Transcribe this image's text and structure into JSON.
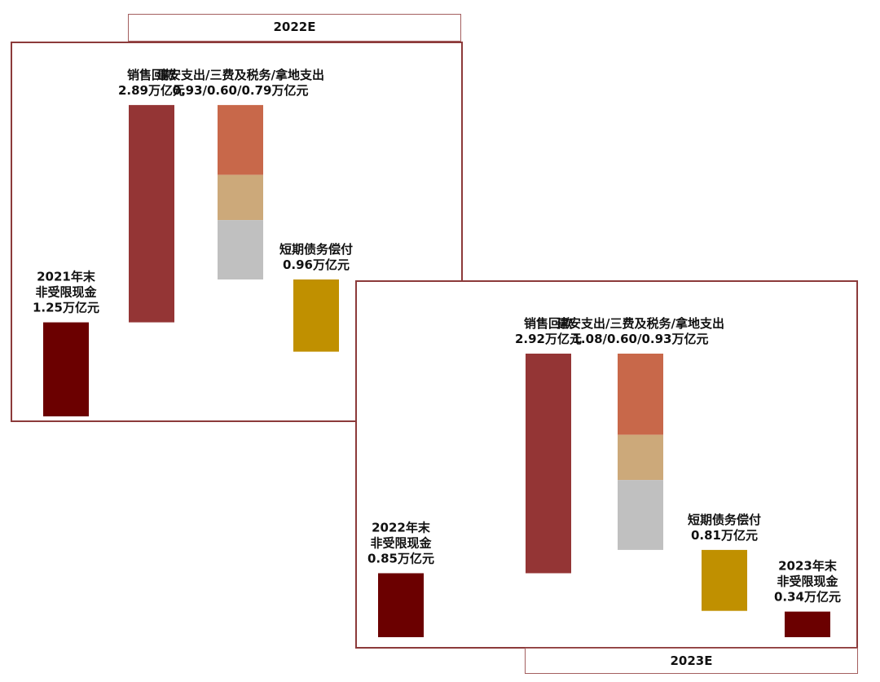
{
  "colors": {
    "panel_border": "#8c3a3a",
    "cash": "#6b0000",
    "sales": "#943535",
    "construction": "#c8684a",
    "fees_taxes": "#cca97a",
    "land": "#c0c0c0",
    "debt": "#c09000"
  },
  "unit": "万亿元",
  "chart_data": [
    {
      "type": "bar",
      "subtype": "waterfall",
      "period_label": "2022E",
      "steps": [
        {
          "key": "start_cash",
          "label_lines": [
            "2021年末",
            "非受限现金",
            "1.25万亿元"
          ],
          "value": 1.25,
          "direction": "start",
          "color_key": "cash"
        },
        {
          "key": "sales",
          "label_lines": [
            "销售回款",
            "2.89万亿元"
          ],
          "value": 2.89,
          "direction": "increase",
          "color_key": "sales"
        },
        {
          "key": "spend",
          "label_lines": [
            "建安支出/三费及税务/拿地支出",
            "0.93/0.60/0.79万亿元"
          ],
          "direction": "decrease",
          "segments": [
            {
              "name": "建安支出",
              "value": 0.93,
              "color_key": "construction"
            },
            {
              "name": "三费及税务",
              "value": 0.6,
              "color_key": "fees_taxes"
            },
            {
              "name": "拿地支出",
              "value": 0.79,
              "color_key": "land"
            }
          ]
        },
        {
          "key": "debt",
          "label_lines": [
            "短期债务偿付",
            "0.96万亿元"
          ],
          "value": 0.96,
          "direction": "decrease",
          "color_key": "debt"
        }
      ]
    },
    {
      "type": "bar",
      "subtype": "waterfall",
      "period_label": "2023E",
      "steps": [
        {
          "key": "start_cash",
          "label_lines": [
            "2022年末",
            "非受限现金",
            "0.85万亿元"
          ],
          "value": 0.85,
          "direction": "start",
          "color_key": "cash"
        },
        {
          "key": "sales",
          "label_lines": [
            "销售回款",
            "2.92万亿元"
          ],
          "value": 2.92,
          "direction": "increase",
          "color_key": "sales"
        },
        {
          "key": "spend",
          "label_lines": [
            "建安支出/三费及税务/拿地支出",
            "1.08/0.60/0.93万亿元"
          ],
          "direction": "decrease",
          "segments": [
            {
              "name": "建安支出",
              "value": 1.08,
              "color_key": "construction"
            },
            {
              "name": "三费及税务",
              "value": 0.6,
              "color_key": "fees_taxes"
            },
            {
              "name": "拿地支出",
              "value": 0.93,
              "color_key": "land"
            }
          ]
        },
        {
          "key": "debt",
          "label_lines": [
            "短期债务偿付",
            "0.81万亿元"
          ],
          "value": 0.81,
          "direction": "decrease",
          "color_key": "debt"
        },
        {
          "key": "end_cash",
          "label_lines": [
            "2023年末",
            "非受限现金",
            "0.34万亿元"
          ],
          "value": 0.34,
          "direction": "end",
          "color_key": "cash"
        }
      ]
    }
  ]
}
